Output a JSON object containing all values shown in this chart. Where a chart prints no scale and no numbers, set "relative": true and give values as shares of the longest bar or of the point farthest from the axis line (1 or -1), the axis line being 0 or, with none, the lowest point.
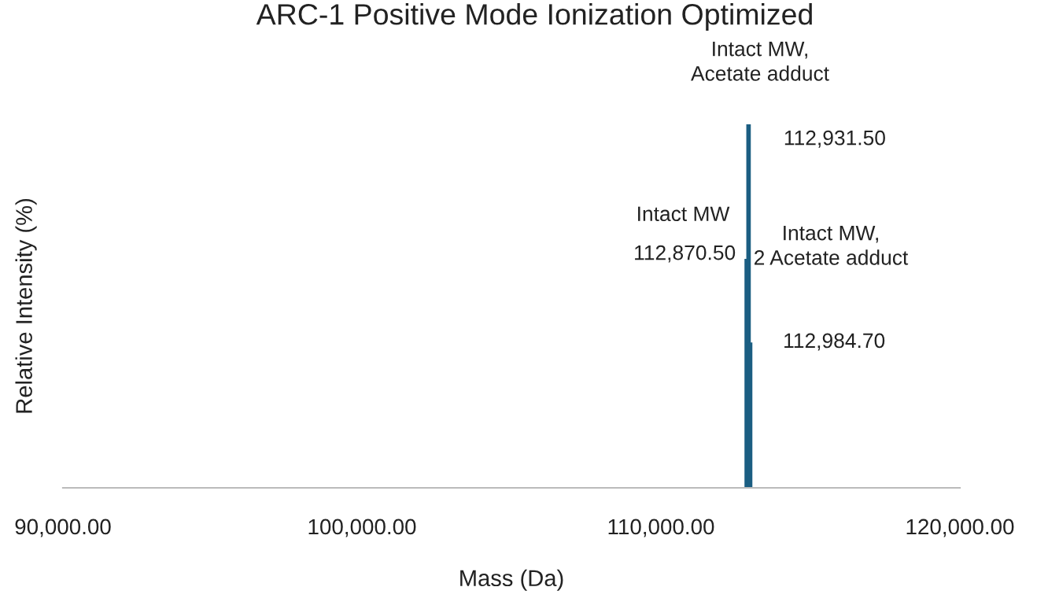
{
  "chart_data": {
    "type": "bar",
    "title": "ARC-1 Positive Mode Ionization Optimized",
    "xlabel": "Mass (Da)",
    "ylabel": "Relative Intensity (%)",
    "relative": true,
    "x": [
      112870.5,
      112931.5,
      112984.7
    ],
    "values": [
      0.63,
      1,
      0.4
    ],
    "color": "#1b5e82",
    "xlim": [
      90000,
      120000
    ],
    "xticks": [
      {
        "value": 90000,
        "label": "90,000.00"
      },
      {
        "value": 100000,
        "label": "100,000.00"
      },
      {
        "value": 110000,
        "label": "110,000.00"
      },
      {
        "value": 120000,
        "label": "120,000.00"
      }
    ],
    "annotations": [
      "Intact MW,\nAcetate adduct",
      {
        "text": "112,931.50",
        "x": 112931.5,
        "y": 1
      },
      "Intact MW",
      {
        "text": "112,870.50",
        "x": 112870.5,
        "y": 0.63
      },
      "Intact MW,\n2 Acetate adduct",
      {
        "text": "112,984.70",
        "x": 112984.7,
        "y": 0.4
      }
    ],
    "grid": false,
    "legend": false
  }
}
